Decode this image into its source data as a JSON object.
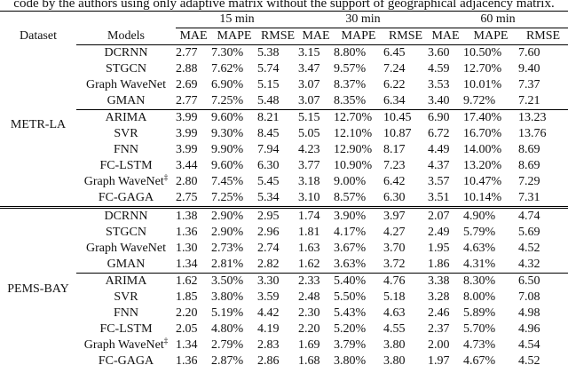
{
  "caption": "code by the authors using only adaptive matrix without the support of geographical adjacency matrix.",
  "header": {
    "dataset": "Dataset",
    "models": "Models",
    "horizons": [
      "15 min",
      "30 min",
      "60 min"
    ],
    "metrics": [
      "MAE",
      "MAPE",
      "RMSE"
    ]
  },
  "groups": [
    {
      "name": "METR-LA",
      "blocks": [
        [
          {
            "model": "DCRNN",
            "vals": [
              "2.77",
              "7.30%",
              "5.38",
              "3.15",
              "8.80%",
              "6.45",
              "3.60",
              "10.50%",
              "7.60"
            ]
          },
          {
            "model": "STGCN",
            "vals": [
              "2.88",
              "7.62%",
              "5.74",
              "3.47",
              "9.57%",
              "7.24",
              "4.59",
              "12.70%",
              "9.40"
            ]
          },
          {
            "model": "Graph WaveNet",
            "vals": [
              "2.69",
              "6.90%",
              "5.15",
              "3.07",
              "8.37%",
              "6.22",
              "3.53",
              "10.01%",
              "7.37"
            ]
          },
          {
            "model": "GMAN",
            "vals": [
              "2.77",
              "7.25%",
              "5.48",
              "3.07",
              "8.35%",
              "6.34",
              "3.40",
              "9.72%",
              "7.21"
            ]
          }
        ],
        [
          {
            "model": "ARIMA",
            "vals": [
              "3.99",
              "9.60%",
              "8.21",
              "5.15",
              "12.70%",
              "10.45",
              "6.90",
              "17.40%",
              "13.23"
            ]
          },
          {
            "model": "SVR",
            "vals": [
              "3.99",
              "9.30%",
              "8.45",
              "5.05",
              "12.10%",
              "10.87",
              "6.72",
              "16.70%",
              "13.76"
            ]
          },
          {
            "model": "FNN",
            "vals": [
              "3.99",
              "9.90%",
              "7.94",
              "4.23",
              "12.90%",
              "8.17",
              "4.49",
              "14.00%",
              "8.69"
            ]
          },
          {
            "model": "FC-LSTM",
            "vals": [
              "3.44",
              "9.60%",
              "6.30",
              "3.77",
              "10.90%",
              "7.23",
              "4.37",
              "13.20%",
              "8.69"
            ]
          },
          {
            "model": "Graph WaveNet",
            "mark": "‡",
            "vals": [
              "2.80",
              "7.45%",
              "5.45",
              "3.18",
              "9.00%",
              "6.42",
              "3.57",
              "10.47%",
              "7.29"
            ]
          },
          {
            "model": "FC-GAGA",
            "vals": [
              "2.75",
              "7.25%",
              "5.34",
              "3.10",
              "8.57%",
              "6.30",
              "3.51",
              "10.14%",
              "7.31"
            ]
          }
        ]
      ]
    },
    {
      "name": "PEMS-BAY",
      "blocks": [
        [
          {
            "model": "DCRNN",
            "vals": [
              "1.38",
              "2.90%",
              "2.95",
              "1.74",
              "3.90%",
              "3.97",
              "2.07",
              "4.90%",
              "4.74"
            ]
          },
          {
            "model": "STGCN",
            "vals": [
              "1.36",
              "2.90%",
              "2.96",
              "1.81",
              "4.17%",
              "4.27",
              "2.49",
              "5.79%",
              "5.69"
            ]
          },
          {
            "model": "Graph WaveNet",
            "vals": [
              "1.30",
              "2.73%",
              "2.74",
              "1.63",
              "3.67%",
              "3.70",
              "1.95",
              "4.63%",
              "4.52"
            ]
          },
          {
            "model": "GMAN",
            "vals": [
              "1.34",
              "2.81%",
              "2.82",
              "1.62",
              "3.63%",
              "3.72",
              "1.86",
              "4.31%",
              "4.32"
            ]
          }
        ],
        [
          {
            "model": "ARIMA",
            "vals": [
              "1.62",
              "3.50%",
              "3.30",
              "2.33",
              "5.40%",
              "4.76",
              "3.38",
              "8.30%",
              "6.50"
            ]
          },
          {
            "model": "SVR",
            "vals": [
              "1.85",
              "3.80%",
              "3.59",
              "2.48",
              "5.50%",
              "5.18",
              "3.28",
              "8.00%",
              "7.08"
            ]
          },
          {
            "model": "FNN",
            "vals": [
              "2.20",
              "5.19%",
              "4.42",
              "2.30",
              "5.43%",
              "4.63",
              "2.46",
              "5.89%",
              "4.98"
            ]
          },
          {
            "model": "FC-LSTM",
            "vals": [
              "2.05",
              "4.80%",
              "4.19",
              "2.20",
              "5.20%",
              "4.55",
              "2.37",
              "5.70%",
              "4.96"
            ]
          },
          {
            "model": "Graph WaveNet",
            "mark": "‡",
            "vals": [
              "1.34",
              "2.79%",
              "2.83",
              "1.69",
              "3.79%",
              "3.80",
              "2.00",
              "4.73%",
              "4.54"
            ]
          },
          {
            "model": "FC-GAGA",
            "vals": [
              "1.36",
              "2.87%",
              "2.86",
              "1.68",
              "3.80%",
              "3.80",
              "1.97",
              "4.67%",
              "4.52"
            ]
          }
        ]
      ]
    }
  ],
  "bold_cells": {
    "METR-LA:1:5": [
      0,
      1,
      2,
      3,
      4,
      5,
      6,
      7
    ],
    "METR-LA:1:4": [
      8
    ],
    "PEMS-BAY:1:4": [
      0,
      1,
      2,
      4,
      5
    ],
    "PEMS-BAY:1:5": [
      3,
      5,
      6,
      7,
      8
    ]
  }
}
